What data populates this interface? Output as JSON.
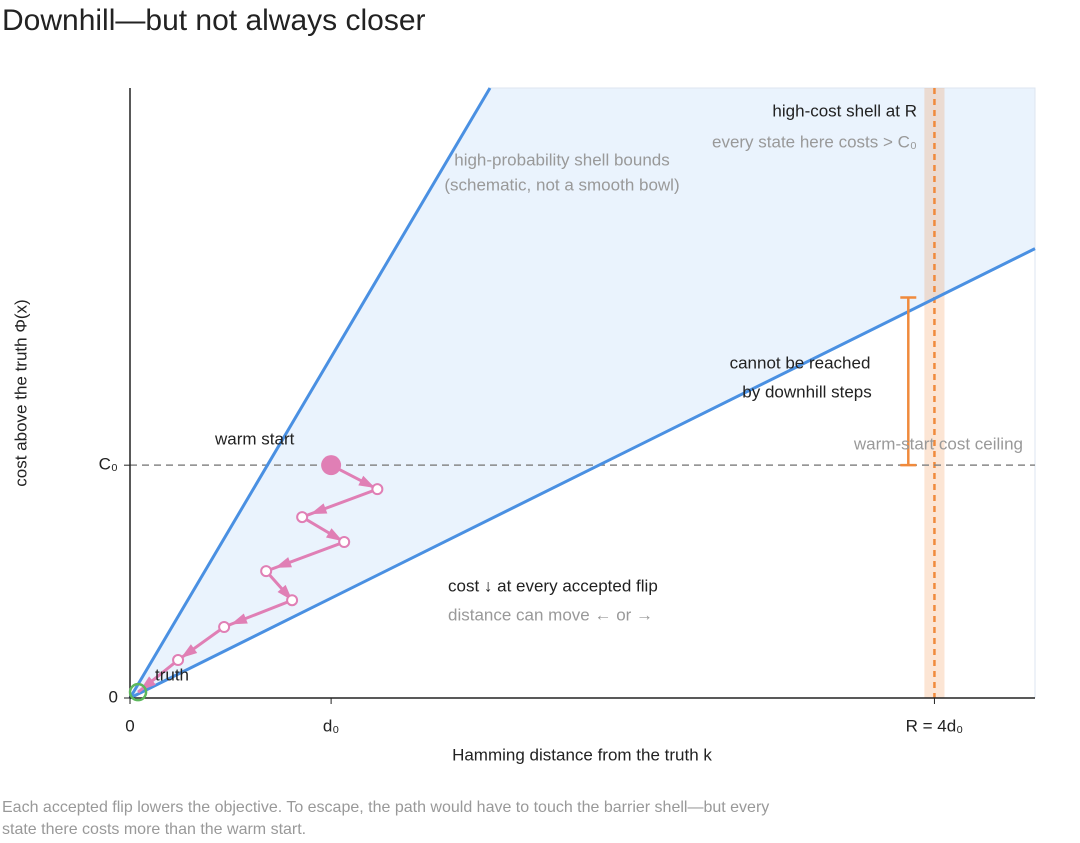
{
  "chart_data": {
    "type": "line",
    "title": "Downhill—but not always closer",
    "caption": [
      "Each accepted flip lowers the objective. To escape, the path would have to touch the barrier shell—but every",
      "state there costs more than the warm start."
    ],
    "xlabel": "Hamming distance from the truth k",
    "ylabel": "cost above the truth Φ(x)",
    "xlim": [
      0,
      4.5
    ],
    "ylim": [
      0,
      2.62
    ],
    "xticks": [
      0,
      {
        "value": 1,
        "label": "d₀"
      },
      {
        "value": 4,
        "label": "R = 4d₀"
      }
    ],
    "yticks": [
      0,
      {
        "value": 1,
        "label": "C₀"
      }
    ],
    "bounds": [
      {
        "color": "#4a90e2",
        "x": [
          0,
          1.79
        ],
        "values": [
          0,
          2.62
        ]
      },
      {
        "color": "#4a90e2",
        "x": [
          0,
          4.5
        ],
        "values": [
          0,
          1.93
        ]
      }
    ],
    "shell_note": [
      "high-probability shell bounds",
      "(schematic, not a smooth bowl)"
    ],
    "path": {
      "color": "#e07fb5",
      "x": [
        1,
        1.23,
        0.856,
        1.065,
        0.677,
        0.806,
        0.468,
        0.239,
        0.04
      ],
      "values": [
        1,
        0.897,
        0.777,
        0.67,
        0.545,
        0.42,
        0.305,
        0.163,
        0.025
      ]
    },
    "warm_start": "warm start",
    "truth": {
      "label": "truth",
      "color": "#5cb85c"
    },
    "ceiling": {
      "label": "warm-start cost ceiling",
      "y": 1
    },
    "barrier": {
      "x": 4,
      "band": [
        3.95,
        4.05
      ],
      "title": "high-cost shell at R",
      "note": "every state here costs > C₀",
      "color": "#f08a3c"
    },
    "unreachable": {
      "x": 3.87,
      "from": 1,
      "to": 1.72,
      "labels": [
        "cannot be reached",
        "by downhill steps"
      ]
    },
    "path_note": [
      "cost ↓ at every accepted flip",
      "distance can move ← or →"
    ]
  }
}
